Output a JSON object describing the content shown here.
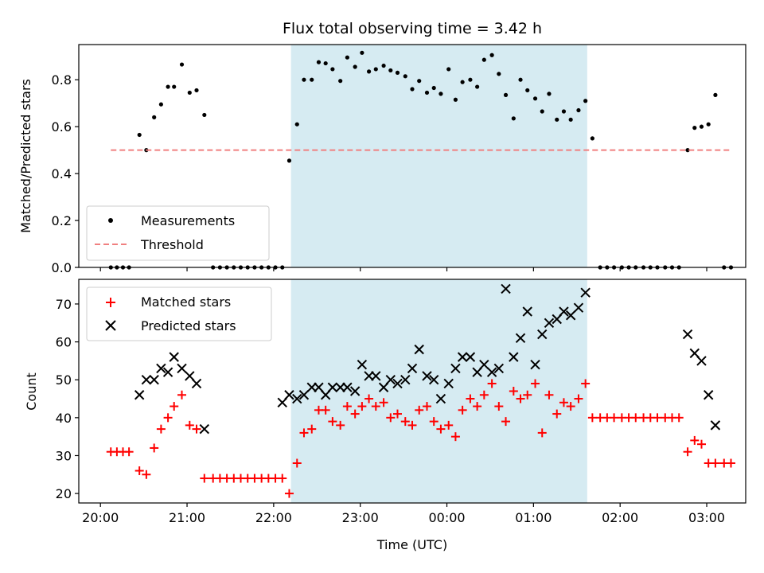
{
  "chart_data": {
    "title": "Flux total observing time = 3.42 h",
    "xlabel": "Time (UTC)",
    "x_ticks": [
      "20:00",
      "21:00",
      "22:00",
      "23:00",
      "00:00",
      "01:00",
      "02:00",
      "03:00"
    ],
    "x_unit": "hours since 20:00 UTC",
    "xlim": [
      -0.25,
      7.45
    ],
    "highlight_span": {
      "start": 2.2,
      "end": 5.62,
      "color": "#add8e6"
    },
    "panels": [
      {
        "type": "scatter",
        "ylabel": "Matched/Predicted stars",
        "ylim": [
          0,
          0.95
        ],
        "y_ticks": [
          0.0,
          0.2,
          0.4,
          0.6,
          0.8
        ],
        "y_tick_labels": [
          "0.0",
          "0.2",
          "0.4",
          "0.6",
          "0.8"
        ],
        "legend_position": "lower-left",
        "series": [
          {
            "name": "Measurements",
            "marker": "dot",
            "color": "#000000",
            "x": [
              0.12,
              0.19,
              0.26,
              0.33,
              0.45,
              0.53,
              0.62,
              0.7,
              0.78,
              0.85,
              0.94,
              1.03,
              1.11,
              1.2,
              1.3,
              1.38,
              1.46,
              1.54,
              1.62,
              1.7,
              1.78,
              1.86,
              1.94,
              2.02,
              2.1,
              2.18,
              2.27,
              2.35,
              2.44,
              2.52,
              2.6,
              2.68,
              2.77,
              2.85,
              2.94,
              3.02,
              3.1,
              3.18,
              3.27,
              3.35,
              3.43,
              3.52,
              3.6,
              3.68,
              3.77,
              3.85,
              3.93,
              4.02,
              4.1,
              4.18,
              4.27,
              4.35,
              4.43,
              4.52,
              4.6,
              4.68,
              4.77,
              4.85,
              4.93,
              5.02,
              5.1,
              5.18,
              5.27,
              5.35,
              5.43,
              5.52,
              5.6,
              5.68,
              5.77,
              5.85,
              5.93,
              6.02,
              6.1,
              6.18,
              6.27,
              6.35,
              6.43,
              6.52,
              6.6,
              6.68,
              6.78,
              6.86,
              6.94,
              7.02,
              7.1,
              7.2,
              7.28
            ],
            "y": [
              0,
              0,
              0,
              0,
              0.565,
              0.5,
              0.64,
              0.695,
              0.77,
              0.77,
              0.865,
              0.745,
              0.755,
              0.65,
              0,
              0,
              0,
              0,
              0,
              0,
              0,
              0,
              0,
              0,
              0,
              0.455,
              0.61,
              0.8,
              0.8,
              0.875,
              0.87,
              0.845,
              0.795,
              0.895,
              0.855,
              0.915,
              0.835,
              0.845,
              0.86,
              0.84,
              0.83,
              0.815,
              0.76,
              0.795,
              0.745,
              0.765,
              0.74,
              0.845,
              0.715,
              0.79,
              0.8,
              0.77,
              0.885,
              0.905,
              0.825,
              0.735,
              0.635,
              0.8,
              0.755,
              0.72,
              0.665,
              0.74,
              0.63,
              0.665,
              0.63,
              0.67,
              0.71,
              0.55,
              0,
              0,
              0,
              0,
              0,
              0,
              0,
              0,
              0,
              0,
              0,
              0,
              0.5,
              0.595,
              0.6,
              0.61,
              0.735,
              0,
              0
            ]
          },
          {
            "name": "Threshold",
            "type": "line",
            "style": "dashed",
            "color": "#f08080",
            "x": [
              0.12,
              7.28
            ],
            "y": [
              0.5,
              0.5
            ]
          }
        ]
      },
      {
        "type": "scatter",
        "ylabel": "Count",
        "ylim": [
          17.5,
          76.5
        ],
        "y_ticks": [
          20,
          30,
          40,
          50,
          60,
          70
        ],
        "y_tick_labels": [
          "20",
          "30",
          "40",
          "50",
          "60",
          "70"
        ],
        "legend_position": "upper-left",
        "series": [
          {
            "name": "Matched stars",
            "marker": "plus",
            "color": "#ff0000",
            "x": [
              0.12,
              0.19,
              0.26,
              0.33,
              0.45,
              0.53,
              0.62,
              0.7,
              0.78,
              0.85,
              0.94,
              1.03,
              1.11,
              1.2,
              1.3,
              1.38,
              1.46,
              1.54,
              1.62,
              1.7,
              1.78,
              1.86,
              1.94,
              2.02,
              2.1,
              2.18,
              2.27,
              2.35,
              2.44,
              2.52,
              2.6,
              2.68,
              2.77,
              2.85,
              2.94,
              3.02,
              3.1,
              3.18,
              3.27,
              3.35,
              3.43,
              3.52,
              3.6,
              3.68,
              3.77,
              3.85,
              3.93,
              4.02,
              4.1,
              4.18,
              4.27,
              4.35,
              4.43,
              4.52,
              4.6,
              4.68,
              4.77,
              4.85,
              4.93,
              5.02,
              5.1,
              5.18,
              5.27,
              5.35,
              5.43,
              5.52,
              5.6,
              5.68,
              5.77,
              5.85,
              5.93,
              6.02,
              6.1,
              6.18,
              6.27,
              6.35,
              6.43,
              6.52,
              6.6,
              6.68,
              6.78,
              6.86,
              6.94,
              7.02,
              7.1,
              7.2,
              7.28
            ],
            "y": [
              31,
              31,
              31,
              31,
              26,
              25,
              32,
              37,
              40,
              43,
              46,
              38,
              37,
              24,
              24,
              24,
              24,
              24,
              24,
              24,
              24,
              24,
              24,
              24,
              24,
              20,
              28,
              36,
              37,
              42,
              42,
              39,
              38,
              43,
              41,
              43,
              45,
              43,
              44,
              40,
              41,
              39,
              38,
              42,
              43,
              39,
              37,
              38,
              35,
              42,
              45,
              43,
              46,
              49,
              43,
              39,
              47,
              45,
              46,
              49,
              36,
              46,
              41,
              44,
              43,
              45,
              49,
              40,
              40,
              40,
              40,
              40,
              40,
              40,
              40,
              40,
              40,
              40,
              40,
              40,
              31,
              34,
              33,
              28,
              28,
              28,
              28
            ]
          },
          {
            "name": "Predicted stars",
            "marker": "x",
            "color": "#000000",
            "x": [
              0.45,
              0.53,
              0.62,
              0.7,
              0.78,
              0.85,
              0.94,
              1.03,
              1.11,
              1.2,
              2.1,
              2.18,
              2.27,
              2.35,
              2.44,
              2.52,
              2.6,
              2.68,
              2.77,
              2.85,
              2.94,
              3.02,
              3.1,
              3.18,
              3.27,
              3.35,
              3.43,
              3.52,
              3.6,
              3.68,
              3.77,
              3.85,
              3.93,
              4.02,
              4.1,
              4.18,
              4.27,
              4.35,
              4.43,
              4.52,
              4.6,
              4.68,
              4.77,
              4.85,
              4.93,
              5.02,
              5.1,
              5.18,
              5.27,
              5.35,
              5.43,
              5.52,
              5.6,
              6.78,
              6.86,
              6.94,
              7.02,
              7.1
            ],
            "y": [
              46,
              50,
              50,
              53,
              52,
              56,
              53,
              51,
              49,
              37,
              44,
              46,
              45,
              46,
              48,
              48,
              46,
              48,
              48,
              48,
              47,
              54,
              51,
              51,
              48,
              50,
              49,
              50,
              53,
              58,
              51,
              50,
              45,
              49,
              53,
              56,
              56,
              52,
              54,
              52,
              53,
              74,
              56,
              61,
              68,
              54,
              62,
              65,
              66,
              68,
              67,
              69,
              73,
              62,
              57,
              55,
              46,
              38
            ]
          }
        ]
      }
    ]
  }
}
